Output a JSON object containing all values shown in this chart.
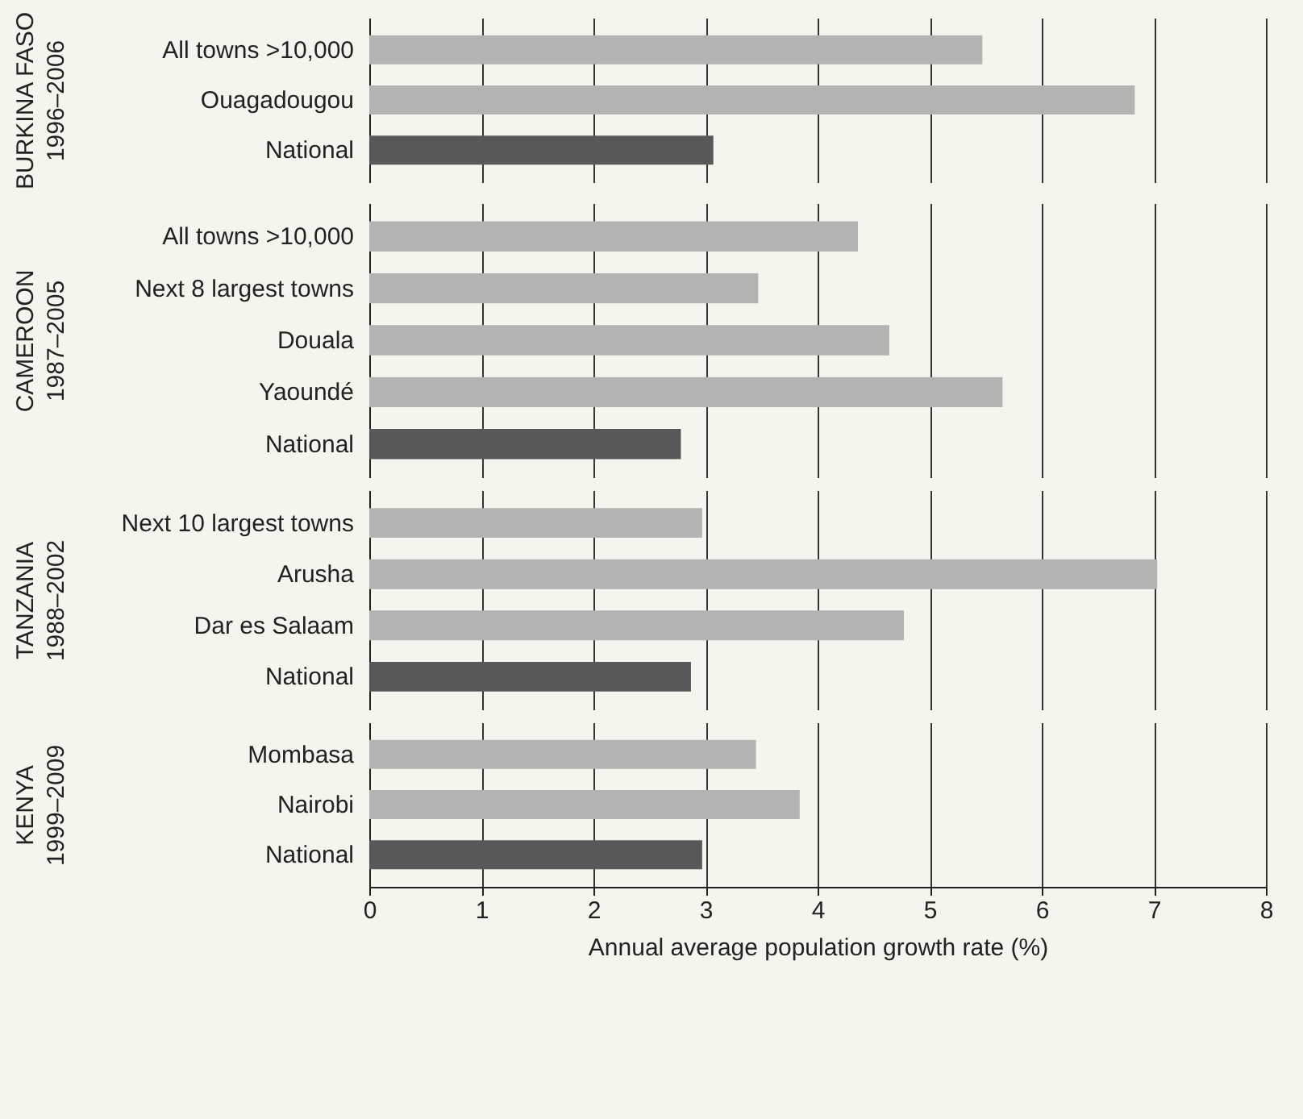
{
  "chart_data": [
    {
      "type": "bar",
      "orientation": "horizontal",
      "ylabel": "BURKINA FASO\n1996–2006",
      "categories": [
        "All towns >10,000",
        "Ouagadougou",
        "National"
      ],
      "values": [
        5.47,
        6.83,
        3.07
      ],
      "colors": [
        "#b3b3b1",
        "#b3b3b1",
        "#58585a"
      ],
      "xlim": [
        0,
        8
      ],
      "xticks": [
        0,
        1,
        2,
        3,
        4,
        5,
        6,
        7,
        8
      ],
      "grid": "x",
      "tick_labels": "y"
    },
    {
      "type": "bar",
      "orientation": "horizontal",
      "ylabel": "CAMEROON\n1987–2005",
      "categories": [
        "All towns >10,000",
        "Next 8 largest towns",
        "Douala",
        "Yaoundé",
        "National"
      ],
      "values": [
        4.36,
        3.47,
        4.64,
        5.65,
        2.78
      ],
      "colors": [
        "#b3b3b1",
        "#b3b3b1",
        "#b3b3b1",
        "#b3b3b1",
        "#58585a"
      ],
      "xlim": [
        0,
        8
      ],
      "xticks": [
        0,
        1,
        2,
        3,
        4,
        5,
        6,
        7,
        8
      ],
      "grid": "x",
      "tick_labels": "y"
    },
    {
      "type": "bar",
      "orientation": "horizontal",
      "ylabel": "TANZANIA\n1988–2002",
      "categories": [
        "Next 10 largest towns",
        "Arusha",
        "Dar es Salaam",
        "National"
      ],
      "values": [
        2.97,
        7.03,
        4.77,
        2.87
      ],
      "colors": [
        "#b3b3b1",
        "#b3b3b1",
        "#b3b3b1",
        "#58585a"
      ],
      "xlim": [
        0,
        8
      ],
      "xticks": [
        0,
        1,
        2,
        3,
        4,
        5,
        6,
        7,
        8
      ],
      "grid": "x",
      "tick_labels": "y"
    },
    {
      "type": "bar",
      "orientation": "horizontal",
      "ylabel": "KENYA\n1999–2009",
      "xlabel": "Annual average population growth rate (%)",
      "categories": [
        "Mombasa",
        "Nairobi",
        "National"
      ],
      "values": [
        3.45,
        3.84,
        2.97
      ],
      "colors": [
        "#b3b3b1",
        "#b3b3b1",
        "#58585a"
      ],
      "xlim": [
        0,
        8
      ],
      "xticks": [
        0,
        1,
        2,
        3,
        4,
        5,
        6,
        7,
        8
      ],
      "grid": "x"
    }
  ]
}
